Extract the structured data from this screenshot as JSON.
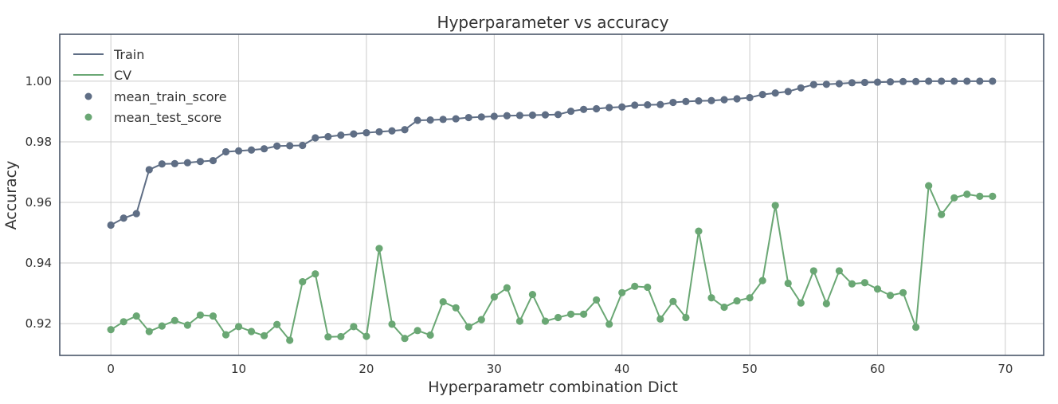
{
  "chart_data": {
    "type": "line",
    "title": "Hyperparameter vs accuracy",
    "xlabel": "Hyperparametr combination Dict",
    "ylabel": "Accuracy",
    "xlim": [
      -4,
      73
    ],
    "ylim": [
      0.9095,
      1.0155
    ],
    "xticks": [
      0,
      10,
      20,
      30,
      40,
      50,
      60,
      70
    ],
    "yticks": [
      0.92,
      0.94,
      0.96,
      0.98,
      1.0
    ],
    "xtick_labels": [
      "0",
      "10",
      "20",
      "30",
      "40",
      "50",
      "60",
      "70"
    ],
    "ytick_labels": [
      "0.92",
      "0.94",
      "0.96",
      "0.98",
      "1.00"
    ],
    "grid": true,
    "legend_position": "top-left",
    "legend": [
      "Train",
      "CV",
      "mean_train_score",
      "mean_test_score"
    ],
    "series": [
      {
        "name": "Train",
        "scatter_name": "mean_train_score",
        "color": "#5f6e85",
        "values": [
          0.9525,
          0.9548,
          0.9563,
          0.9708,
          0.9727,
          0.9728,
          0.9731,
          0.9735,
          0.9738,
          0.9767,
          0.977,
          0.9773,
          0.9777,
          0.9786,
          0.9787,
          0.9788,
          0.9813,
          0.9817,
          0.9822,
          0.9826,
          0.983,
          0.9833,
          0.9836,
          0.984,
          0.9871,
          0.9872,
          0.9874,
          0.9876,
          0.988,
          0.9882,
          0.9884,
          0.9886,
          0.9887,
          0.9888,
          0.9889,
          0.989,
          0.9901,
          0.9907,
          0.9909,
          0.9913,
          0.9915,
          0.9921,
          0.9922,
          0.9923,
          0.993,
          0.9933,
          0.9935,
          0.9936,
          0.9939,
          0.9942,
          0.9946,
          0.9956,
          0.9961,
          0.9966,
          0.9978,
          0.9989,
          0.999,
          0.9992,
          0.9995,
          0.9996,
          0.9997,
          0.9998,
          0.9999,
          0.9999,
          1.0,
          1.0,
          1.0,
          1.0,
          1.0,
          1.0
        ]
      },
      {
        "name": "CV",
        "scatter_name": "mean_test_score",
        "color": "#6aa774",
        "values": [
          0.918,
          0.9206,
          0.9225,
          0.9174,
          0.9192,
          0.921,
          0.9195,
          0.9228,
          0.9225,
          0.9163,
          0.919,
          0.9174,
          0.916,
          0.9197,
          0.9145,
          0.9338,
          0.9364,
          0.9156,
          0.9157,
          0.919,
          0.9158,
          0.9448,
          0.9198,
          0.9151,
          0.9177,
          0.9162,
          0.9272,
          0.9252,
          0.9189,
          0.9213,
          0.9288,
          0.9318,
          0.9208,
          0.9296,
          0.9208,
          0.922,
          0.9231,
          0.9231,
          0.9278,
          0.9198,
          0.9302,
          0.9323,
          0.932,
          0.9215,
          0.9273,
          0.922,
          0.9505,
          0.9285,
          0.9254,
          0.9275,
          0.9285,
          0.9342,
          0.959,
          0.9333,
          0.9268,
          0.9374,
          0.9266,
          0.9374,
          0.9331,
          0.9335,
          0.9314,
          0.9293,
          0.9302,
          0.9188,
          0.9655,
          0.956,
          0.9615,
          0.9627,
          0.962,
          0.962
        ]
      }
    ]
  }
}
